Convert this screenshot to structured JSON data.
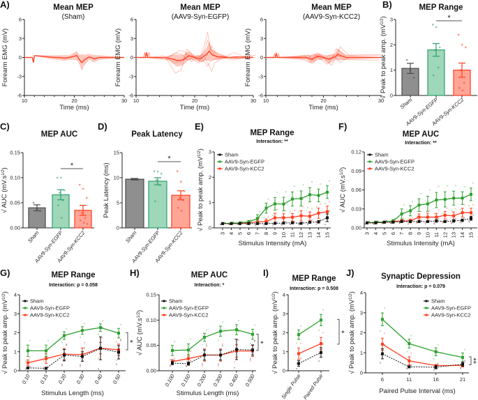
{
  "colors": {
    "sham": "#111111",
    "sham_bar": "#8f8f8f",
    "egfp": "#2ca02c",
    "egfp_bar": "#9ed7b9",
    "egfp_bar_edge": "#2f9e6c",
    "kcc2": "#ff3d1f",
    "kcc2_bar": "#ffa696",
    "trace": "#ff4a2a"
  },
  "chart_data": [
    {
      "id": "A1",
      "panel_label": "A)",
      "type": "line",
      "title": "Mean MEP",
      "subtitle": "(Sham)",
      "xlabel": "Time (ms)",
      "ylabel": "Forearm EMG (mV)",
      "xlim": [
        10,
        30
      ],
      "ylim": [
        -6,
        6
      ],
      "xticks": [
        "10",
        "20",
        "30"
      ],
      "yticks": [
        "6",
        "3",
        "0",
        "-3",
        "-6"
      ],
      "mean_trace": {
        "t": [
          10,
          11.6,
          11.8,
          12,
          16,
          17,
          18,
          19,
          20,
          20.5,
          21,
          21.5,
          22,
          23,
          24,
          25,
          30
        ],
        "v": [
          0,
          0,
          -0.8,
          0.3,
          0,
          0,
          -0.1,
          0,
          0.2,
          0.3,
          -0.3,
          -0.8,
          -0.4,
          0.1,
          -0.2,
          0,
          0
        ]
      }
    },
    {
      "id": "A2",
      "panel_label": "",
      "type": "line",
      "title": "Mean MEP",
      "subtitle": "(AAV9-Syn-EGFP)",
      "xlabel": "Time (ms)",
      "ylabel": "Forearm EMG (mV)",
      "xlim": [
        10,
        30
      ],
      "ylim": [
        -6,
        6
      ],
      "xticks": [
        "10",
        "20",
        "30"
      ],
      "yticks": [
        "6",
        "3",
        "0",
        "-3",
        "-6"
      ],
      "mean_trace": {
        "t": [
          10,
          11.6,
          11.8,
          12,
          15,
          16,
          17,
          18,
          19,
          20,
          21,
          22,
          22.5,
          23,
          24,
          26,
          27,
          30
        ],
        "v": [
          0,
          0,
          0.8,
          0,
          0,
          -0.2,
          -0.5,
          -0.4,
          0.3,
          0,
          -0.2,
          0.5,
          1.0,
          0.4,
          0.1,
          0,
          0.1,
          0
        ]
      }
    },
    {
      "id": "A3",
      "panel_label": "",
      "type": "line",
      "title": "Mean MEP",
      "subtitle": "(AAV9-Syn-KCC2)",
      "xlabel": "Time (ms)",
      "ylabel": "Forearm EMG (mV)",
      "xlim": [
        10,
        30
      ],
      "ylim": [
        -6,
        6
      ],
      "xticks": [
        "10",
        "20",
        "30"
      ],
      "yticks": [
        "6",
        "3",
        "0",
        "-3",
        "-6"
      ],
      "mean_trace": {
        "t": [
          10,
          11.6,
          11.8,
          12,
          16,
          17,
          18,
          19,
          20,
          21,
          22,
          22.5,
          23,
          24,
          30
        ],
        "v": [
          0,
          0,
          0.6,
          0,
          0,
          0,
          -0.3,
          0.2,
          0,
          -0.3,
          0.1,
          0.5,
          0.3,
          0,
          0
        ]
      }
    },
    {
      "id": "B",
      "panel_label": "B)",
      "type": "bar",
      "title": "MEP Range",
      "ylabel": [
        "√ Peak to peak amp. (mV",
        "1/2",
        ")"
      ],
      "ylim": [
        0,
        3
      ],
      "yticks": [
        "0",
        "1",
        "2",
        "3"
      ],
      "categories": [
        "Sham",
        "AAV9-Syn-EGFP",
        "AAV9-Syn-KCC2"
      ],
      "values": [
        1.07,
        1.8,
        1.0
      ],
      "errors": [
        0.2,
        0.25,
        0.28
      ],
      "points": [
        [
          1.4,
          1.0,
          0.7
        ],
        [
          2.8,
          2.7,
          1.9,
          1.8,
          1.1,
          0.8
        ],
        [
          2.4,
          2.0,
          1.9,
          1.0,
          0.5,
          0.3,
          0.2
        ]
      ],
      "significance": [
        {
          "label": "*",
          "between": [
            1,
            2
          ],
          "y": 2.95
        }
      ]
    },
    {
      "id": "C",
      "panel_label": "C)",
      "type": "bar",
      "title": "MEP AUC",
      "ylabel": [
        "√ AUC (mV.s",
        "1/2",
        ")"
      ],
      "ylim": [
        0,
        0.15
      ],
      "yticks": [
        "0.00",
        "0.05",
        "0.10",
        "0.15"
      ],
      "categories": [
        "Sham",
        "AAV9-Syn-EGFP",
        "AAV9-Syn-KCC2"
      ],
      "values": [
        0.04,
        0.066,
        0.035
      ],
      "errors": [
        0.006,
        0.01,
        0.01
      ],
      "points": [
        [
          0.05,
          0.038,
          0.034
        ],
        [
          0.1,
          0.1,
          0.075,
          0.07,
          0.055,
          0.045,
          0.02
        ],
        [
          0.086,
          0.078,
          0.06,
          0.03,
          0.02,
          0.015,
          0.01,
          0.008
        ]
      ],
      "significance": [
        {
          "label": "*",
          "between": [
            1,
            2
          ],
          "y": 0.118
        }
      ]
    },
    {
      "id": "D",
      "panel_label": "D)",
      "type": "bar",
      "title": "Peak Latency",
      "ylabel": [
        "Peak Latency (ms)",
        "",
        ""
      ],
      "ylim": [
        0,
        15
      ],
      "yticks": [
        "0",
        "5",
        "10",
        "15"
      ],
      "categories": [
        "Sham",
        "AAV9-Syn-EGFP",
        "AAV9-Syn-KCC2"
      ],
      "values": [
        9.7,
        9.3,
        6.5
      ],
      "errors": [
        0.15,
        0.7,
        0.9
      ],
      "points": [
        [
          9.8,
          9.7,
          9.6
        ],
        [
          11.3,
          11.2,
          10.8,
          9.5,
          8.5,
          5.3
        ],
        [
          11.3,
          9.2,
          7.3,
          6.0,
          5.5,
          4.0,
          3.4
        ]
      ],
      "significance": [
        {
          "label": "*",
          "between": [
            1,
            2
          ],
          "y": 13.2
        }
      ]
    },
    {
      "id": "E",
      "panel_label": "E)",
      "type": "line",
      "title": "MEP Range",
      "interaction": "Interaction: **",
      "xlabel": "Stimulus Intensity (mA)",
      "ylabel": [
        "√ Peak to peak amp. (mV",
        "1/2",
        ")"
      ],
      "ylim": [
        0,
        3
      ],
      "yticks": [
        "0",
        "1",
        "2",
        "3"
      ],
      "categories": [
        "3",
        "4",
        "5",
        "6",
        "7",
        "8",
        "9",
        "10",
        "11",
        "12",
        "13",
        "14",
        "15"
      ],
      "series": [
        {
          "name": "Sham",
          "values": [
            0.17,
            0.17,
            0.17,
            0.17,
            0.17,
            0.17,
            0.18,
            0.19,
            0.2,
            0.18,
            0.22,
            0.24,
            0.4
          ],
          "errors": [
            0.01,
            0.01,
            0.01,
            0.01,
            0.01,
            0.02,
            0.02,
            0.03,
            0.03,
            0.02,
            0.04,
            0.05,
            0.15
          ]
        },
        {
          "name": "AAV9-Syn-EGFP",
          "values": [
            0.17,
            0.18,
            0.2,
            0.24,
            0.37,
            0.78,
            0.95,
            0.94,
            1.14,
            1.16,
            1.31,
            1.28,
            1.41
          ],
          "errors": [
            0.02,
            0.03,
            0.03,
            0.05,
            0.15,
            0.2,
            0.25,
            0.27,
            0.28,
            0.3,
            0.28,
            0.25,
            0.25
          ]
        },
        {
          "name": "AAV9-Syn-KCC2",
          "values": [
            0.17,
            0.17,
            0.18,
            0.2,
            0.24,
            0.25,
            0.4,
            0.4,
            0.42,
            0.48,
            0.46,
            0.58,
            0.64
          ],
          "errors": [
            0.02,
            0.02,
            0.02,
            0.03,
            0.08,
            0.1,
            0.18,
            0.16,
            0.15,
            0.2,
            0.17,
            0.2,
            0.22
          ]
        }
      ]
    },
    {
      "id": "F",
      "panel_label": "F)",
      "type": "line",
      "title": "MEP AUC",
      "interaction": "Interaction: **",
      "xlabel": "Stimulus Intensity (mA)",
      "ylabel": [
        "√ AUC (mV.s",
        "1/2",
        ")"
      ],
      "ylim": [
        0,
        0.12
      ],
      "yticks": [
        "0.00",
        "0.03",
        "0.06",
        "0.09",
        "0.12"
      ],
      "categories": [
        "3",
        "4",
        "5",
        "6",
        "7",
        "8",
        "9",
        "10",
        "11",
        "12",
        "13",
        "14",
        "15"
      ],
      "series": [
        {
          "name": "Sham",
          "values": [
            0.008,
            0.008,
            0.009,
            0.009,
            0.01,
            0.01,
            0.01,
            0.01,
            0.011,
            0.01,
            0.011,
            0.012,
            0.015
          ],
          "errors": [
            0.001,
            0.001,
            0.001,
            0.001,
            0.001,
            0.001,
            0.001,
            0.001,
            0.002,
            0.001,
            0.002,
            0.002,
            0.003
          ]
        },
        {
          "name": "AAV9-Syn-EGFP",
          "values": [
            0.008,
            0.009,
            0.009,
            0.011,
            0.022,
            0.027,
            0.036,
            0.038,
            0.044,
            0.045,
            0.047,
            0.047,
            0.053
          ],
          "errors": [
            0.001,
            0.001,
            0.001,
            0.002,
            0.008,
            0.008,
            0.01,
            0.012,
            0.012,
            0.012,
            0.011,
            0.01,
            0.01
          ]
        },
        {
          "name": "AAV9-Syn-KCC2",
          "values": [
            0.008,
            0.008,
            0.009,
            0.01,
            0.011,
            0.011,
            0.017,
            0.017,
            0.017,
            0.02,
            0.019,
            0.024,
            0.024
          ],
          "errors": [
            0.001,
            0.001,
            0.001,
            0.001,
            0.002,
            0.003,
            0.005,
            0.006,
            0.006,
            0.006,
            0.006,
            0.007,
            0.007
          ]
        }
      ]
    },
    {
      "id": "G",
      "panel_label": "G)",
      "type": "line",
      "title": "MEP Range",
      "interaction": "Interaction: p = 0.058",
      "xlabel": "Stimulus Length (ms)",
      "ylabel": [
        "√ Peak to peak amp. (mV",
        "1/2",
        ")"
      ],
      "ylim": [
        0,
        4
      ],
      "yticks": [
        "0",
        "1",
        "2",
        "3",
        "4"
      ],
      "categories": [
        "0.10",
        "0.15",
        "0.20",
        "0.30",
        "0.40",
        "0.50"
      ],
      "series": [
        {
          "name": "Sham",
          "values": [
            0.15,
            0.13,
            0.82,
            0.75,
            1.18,
            0.97
          ],
          "errors": [
            0.03,
            0.03,
            0.3,
            0.25,
            0.6,
            0.35
          ]
        },
        {
          "name": "AAV9-Syn-EGFP",
          "values": [
            1.05,
            1.05,
            1.85,
            2.12,
            2.27,
            1.98
          ],
          "errors": [
            0.3,
            0.3,
            0.2,
            0.2,
            0.2,
            0.25
          ]
        },
        {
          "name": "AAV9-Syn-KCC2",
          "values": [
            0.42,
            0.64,
            0.87,
            0.85,
            1.19,
            1.1
          ],
          "errors": [
            0.15,
            0.25,
            0.3,
            0.35,
            0.3,
            0.3
          ]
        }
      ],
      "significance": [
        {
          "label": "*",
          "y_range": [
            1.1,
            2.0
          ]
        }
      ]
    },
    {
      "id": "H",
      "panel_label": "H)",
      "type": "line",
      "title": "MEP AUC",
      "interaction": "Interaction: *",
      "xlabel": "Stimulus Length (ms)",
      "ylabel": [
        "√ AUC (mV.s",
        "1/2",
        ")"
      ],
      "ylim": [
        0,
        0.15
      ],
      "yticks": [
        "0.00",
        "0.05",
        "0.10",
        "0.15"
      ],
      "categories": [
        "0.100",
        "0.150",
        "0.200",
        "0.300",
        "0.400",
        "0.500"
      ],
      "series": [
        {
          "name": "Sham",
          "values": [
            0.015,
            0.014,
            0.031,
            0.031,
            0.042,
            0.041
          ],
          "errors": [
            0.003,
            0.003,
            0.01,
            0.01,
            0.02,
            0.01
          ]
        },
        {
          "name": "AAV9-Syn-EGFP",
          "values": [
            0.04,
            0.041,
            0.066,
            0.078,
            0.081,
            0.072
          ],
          "errors": [
            0.01,
            0.012,
            0.008,
            0.01,
            0.01,
            0.01
          ]
        },
        {
          "name": "AAV9-Syn-KCC2",
          "values": [
            0.018,
            0.024,
            0.031,
            0.031,
            0.039,
            0.039
          ],
          "errors": [
            0.004,
            0.008,
            0.012,
            0.012,
            0.012,
            0.011
          ]
        }
      ],
      "significance": [
        {
          "label": "*",
          "y_range": [
            0.04,
            0.072
          ]
        }
      ]
    },
    {
      "id": "I",
      "panel_label": "I)",
      "type": "line",
      "title": "MEP Range",
      "interaction": "Interaction: p = 0.508",
      "ylabel": [
        "√ Peak to peak amp. (mV",
        "1/2",
        ")"
      ],
      "ylim": [
        0,
        4
      ],
      "yticks": [
        "0",
        "1",
        "2",
        "3",
        "4"
      ],
      "categories": [
        "Single Pulse",
        "Paired Pulse"
      ],
      "series": [
        {
          "name": "Sham",
          "values": [
            0.38,
            0.96
          ],
          "errors": [
            0.15,
            0.25
          ]
        },
        {
          "name": "AAV9-Syn-EGFP",
          "values": [
            1.9,
            2.67
          ],
          "errors": [
            0.25,
            0.3
          ]
        },
        {
          "name": "AAV9-Syn-KCC2",
          "values": [
            0.9,
            1.43
          ],
          "errors": [
            0.3,
            0.32
          ]
        }
      ],
      "significance": [
        {
          "label": "*",
          "y_range": [
            1.4,
            2.7
          ]
        }
      ]
    },
    {
      "id": "J",
      "panel_label": "J)",
      "type": "line",
      "title": "Synaptic Depression",
      "interaction": "Interaction: p = 0.079",
      "xlabel": "Paired Pulse Interval (ms)",
      "ylabel": [
        "√ Peak to peak amp. (mV",
        "1/2",
        ")"
      ],
      "ylim": [
        0,
        4
      ],
      "yticks": [
        "0",
        "1",
        "2",
        "3",
        "4"
      ],
      "categories": [
        "6",
        "11",
        "16",
        "21"
      ],
      "series": [
        {
          "name": "Sham",
          "values": [
            0.95,
            0.3,
            0.28,
            0.43
          ],
          "errors": [
            0.25,
            0.05,
            0.08,
            0.1
          ]
        },
        {
          "name": "AAV9-Syn-EGFP",
          "values": [
            2.67,
            1.46,
            1.05,
            0.77
          ],
          "errors": [
            0.32,
            0.22,
            0.2,
            0.22
          ]
        },
        {
          "name": "AAV9-Syn-KCC2",
          "values": [
            1.43,
            0.6,
            0.36,
            0.37
          ],
          "errors": [
            0.3,
            0.2,
            0.06,
            0.08
          ]
        }
      ],
      "significance": [
        {
          "label": "**",
          "y_range": [
            0.4,
            0.8
          ]
        }
      ]
    }
  ]
}
